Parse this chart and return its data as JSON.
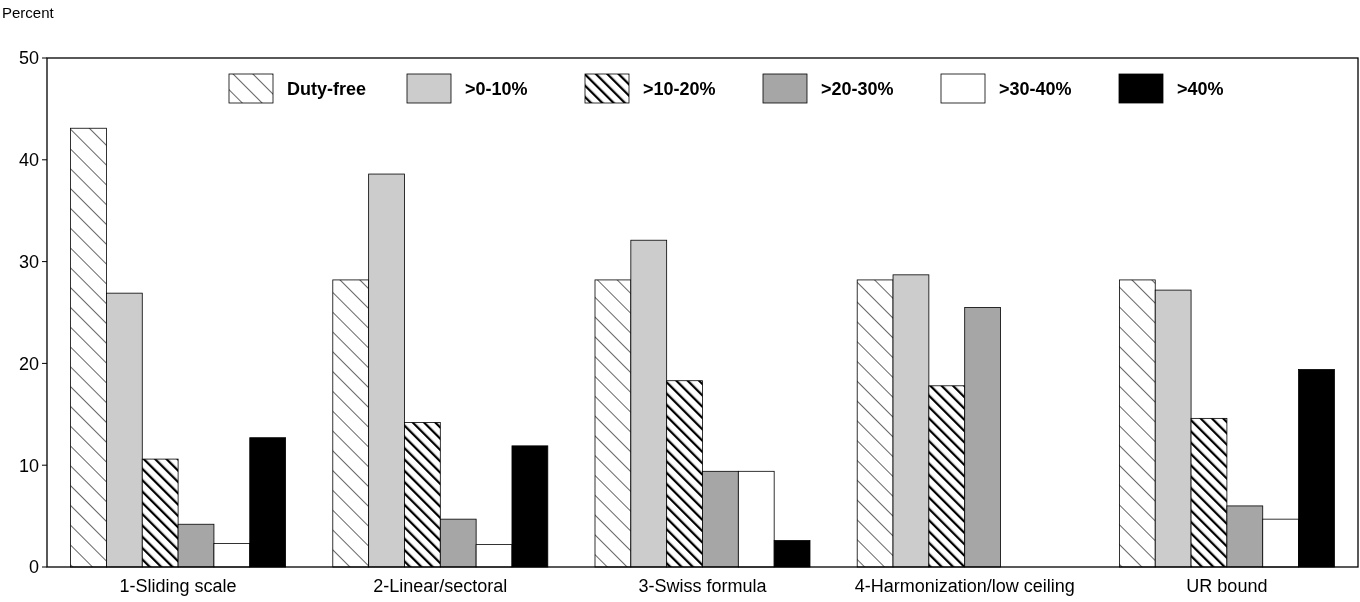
{
  "chart_data": {
    "type": "bar",
    "ylabel": "Percent",
    "categories": [
      "1-Sliding scale",
      "2-Linear/sectoral",
      "3-Swiss formula",
      "4-Harmonization/low ceiling",
      "UR bound"
    ],
    "series": [
      {
        "name": "Duty-free",
        "color": "#000000",
        "values": [
          43.1,
          28.2,
          28.2,
          28.2,
          28.2
        ]
      },
      {
        "name": ">0-10%",
        "color": "#cccccc",
        "values": [
          26.9,
          38.6,
          32.1,
          28.7,
          27.2
        ]
      },
      {
        "name": ">10-20%",
        "color": "#000000",
        "values": [
          10.6,
          14.2,
          18.3,
          17.8,
          14.6
        ]
      },
      {
        "name": ">20-30%",
        "color": "#a6a6a6",
        "values": [
          4.2,
          4.7,
          9.4,
          25.5,
          6.0
        ]
      },
      {
        "name": ">30-40%",
        "color": "#ffffff",
        "values": [
          2.3,
          2.2,
          9.4,
          null,
          4.7
        ]
      },
      {
        "name": ">40%",
        "color": "#000000",
        "values": [
          12.7,
          11.9,
          2.6,
          null,
          19.4
        ]
      }
    ],
    "ylim": [
      0,
      50
    ],
    "yticks": [
      0,
      10,
      20,
      30,
      40,
      50
    ],
    "legend": "top",
    "grid": false
  }
}
